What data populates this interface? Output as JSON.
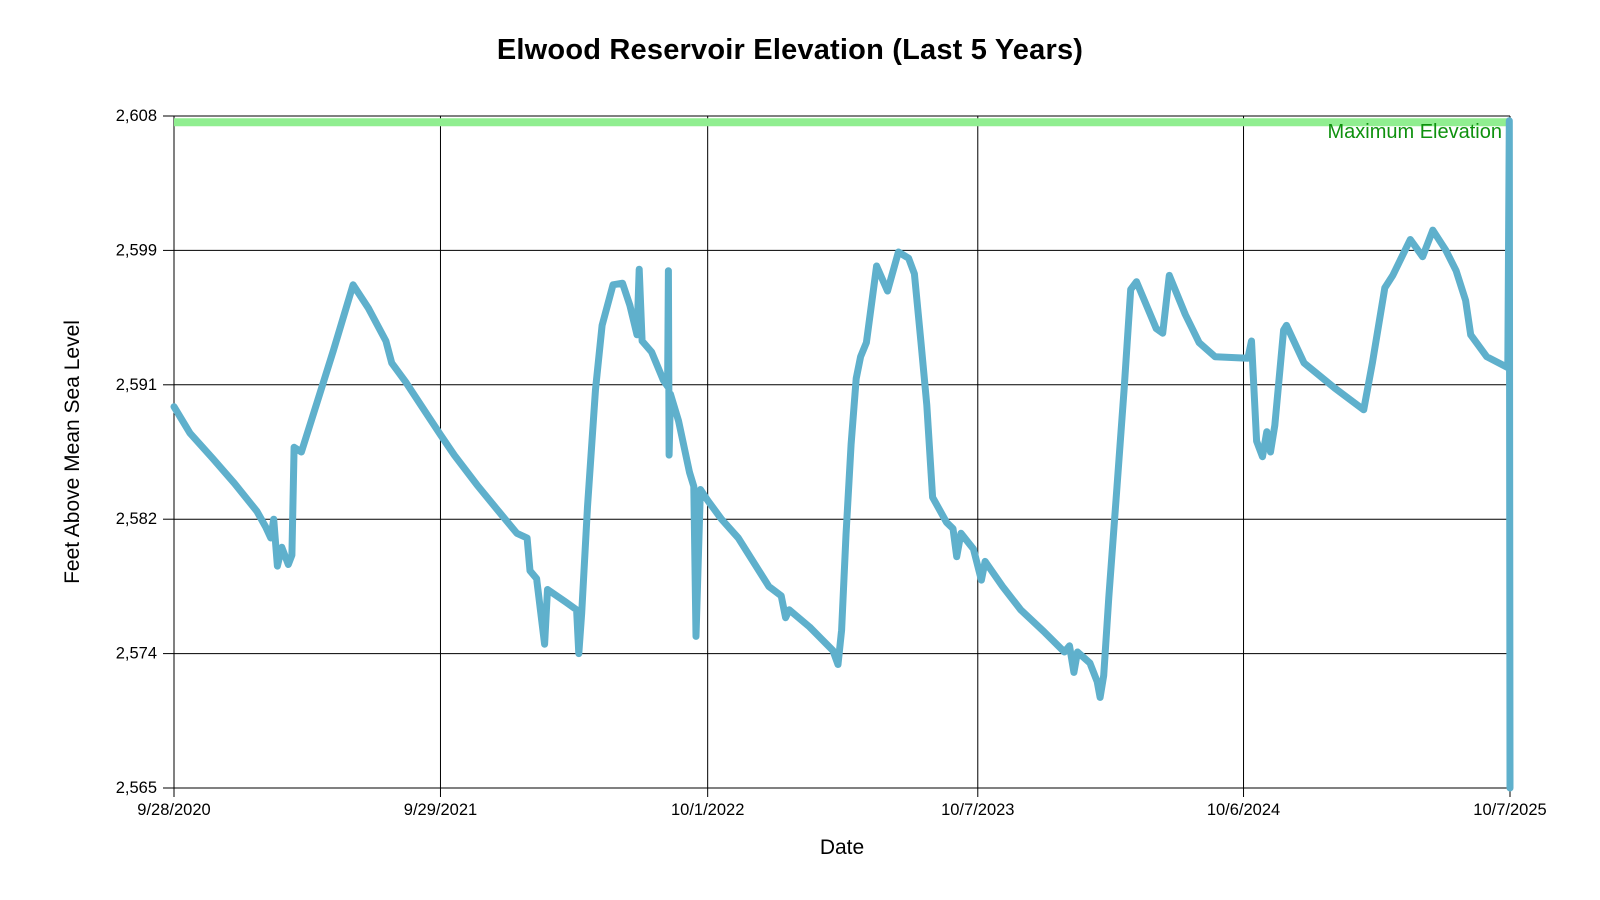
{
  "chart_data": {
    "type": "line",
    "title": "Elwood Reservoir Elevation (Last 5 Years)",
    "xlabel": "Date",
    "ylabel": "Feet Above Mean Sea Level",
    "x_range": [
      "2020-09-28",
      "2025-10-07"
    ],
    "ylim": [
      2565,
      2608
    ],
    "grid": true,
    "legend_position": "none",
    "background": "#FFFFFF",
    "grid_color": "#000000",
    "y_ticks": [
      {
        "value": 2565.0,
        "label": "2,565"
      },
      {
        "value": 2573.6,
        "label": "2,574"
      },
      {
        "value": 2582.2,
        "label": "2,582"
      },
      {
        "value": 2590.8,
        "label": "2,591"
      },
      {
        "value": 2599.4,
        "label": "2,599"
      },
      {
        "value": 2608.0,
        "label": "2,608"
      }
    ],
    "x_ticks": [
      {
        "date": "2020-09-28",
        "label": "9/28/2020"
      },
      {
        "date": "2021-09-29",
        "label": "9/29/2021"
      },
      {
        "date": "2022-10-01",
        "label": "10/1/2022"
      },
      {
        "date": "2023-10-07",
        "label": "10/7/2023"
      },
      {
        "date": "2024-10-06",
        "label": "10/6/2024"
      },
      {
        "date": "2025-10-07",
        "label": "10/7/2025"
      }
    ],
    "max_line": {
      "label": "Maximum Elevation",
      "value": 2607.6,
      "band_color": "#90EE90",
      "label_color": "#0E910E",
      "band_thickness_px": 8
    },
    "series": [
      {
        "name": "Reservoir Elevation",
        "color": "#5FB0CC",
        "width": 7,
        "points": [
          [
            "2020-09-28",
            2589.4
          ],
          [
            "2020-10-20",
            2587.7
          ],
          [
            "2020-11-20",
            2586.1
          ],
          [
            "2020-12-20",
            2584.5
          ],
          [
            "2021-01-20",
            2582.7
          ],
          [
            "2021-02-01",
            2581.7
          ],
          [
            "2021-02-08",
            2581.0
          ],
          [
            "2021-02-12",
            2582.2
          ],
          [
            "2021-02-17",
            2579.2
          ],
          [
            "2021-02-23",
            2580.4
          ],
          [
            "2021-03-04",
            2579.3
          ],
          [
            "2021-03-09",
            2579.9
          ],
          [
            "2021-03-12",
            2586.8
          ],
          [
            "2021-03-22",
            2586.5
          ],
          [
            "2021-04-12",
            2589.6
          ],
          [
            "2021-05-05",
            2593.0
          ],
          [
            "2021-06-01",
            2597.2
          ],
          [
            "2021-06-22",
            2595.7
          ],
          [
            "2021-07-16",
            2593.6
          ],
          [
            "2021-07-24",
            2592.2
          ],
          [
            "2021-08-12",
            2591.0
          ],
          [
            "2021-09-12",
            2588.8
          ],
          [
            "2021-09-29",
            2587.6
          ],
          [
            "2021-10-18",
            2586.3
          ],
          [
            "2021-11-18",
            2584.4
          ],
          [
            "2021-12-18",
            2582.7
          ],
          [
            "2022-01-12",
            2581.3
          ],
          [
            "2022-01-26",
            2581.0
          ],
          [
            "2022-01-30",
            2578.9
          ],
          [
            "2022-02-08",
            2578.4
          ],
          [
            "2022-02-19",
            2574.2
          ],
          [
            "2022-02-23",
            2577.7
          ],
          [
            "2022-03-20",
            2576.9
          ],
          [
            "2022-04-04",
            2576.4
          ],
          [
            "2022-04-07",
            2573.6
          ],
          [
            "2022-04-11",
            2576.2
          ],
          [
            "2022-04-19",
            2583.0
          ],
          [
            "2022-04-30",
            2590.5
          ],
          [
            "2022-05-09",
            2594.6
          ],
          [
            "2022-05-24",
            2597.2
          ],
          [
            "2022-06-06",
            2597.3
          ],
          [
            "2022-06-16",
            2595.9
          ],
          [
            "2022-06-26",
            2594.0
          ],
          [
            "2022-06-29",
            2598.2
          ],
          [
            "2022-07-03",
            2593.6
          ],
          [
            "2022-07-16",
            2592.9
          ],
          [
            "2022-08-01",
            2591.1
          ],
          [
            "2022-08-07",
            2590.7
          ],
          [
            "2022-08-08",
            2598.1
          ],
          [
            "2022-08-09",
            2586.3
          ],
          [
            "2022-08-11",
            2590.2
          ],
          [
            "2022-08-22",
            2588.5
          ],
          [
            "2022-09-06",
            2585.2
          ],
          [
            "2022-09-12",
            2584.3
          ],
          [
            "2022-09-15",
            2574.7
          ],
          [
            "2022-09-21",
            2584.1
          ],
          [
            "2022-10-01",
            2583.4
          ],
          [
            "2022-10-20",
            2582.2
          ],
          [
            "2022-11-12",
            2581.0
          ],
          [
            "2022-12-24",
            2577.9
          ],
          [
            "2023-01-10",
            2577.3
          ],
          [
            "2023-01-16",
            2575.9
          ],
          [
            "2023-01-21",
            2576.4
          ],
          [
            "2023-02-18",
            2575.3
          ],
          [
            "2023-03-22",
            2573.8
          ],
          [
            "2023-03-29",
            2572.9
          ],
          [
            "2023-04-03",
            2575.1
          ],
          [
            "2023-04-09",
            2581.2
          ],
          [
            "2023-04-16",
            2587.0
          ],
          [
            "2023-04-23",
            2591.2
          ],
          [
            "2023-04-29",
            2592.6
          ],
          [
            "2023-05-07",
            2593.5
          ],
          [
            "2023-05-21",
            2598.4
          ],
          [
            "2023-06-05",
            2596.8
          ],
          [
            "2023-06-20",
            2599.3
          ],
          [
            "2023-07-04",
            2598.9
          ],
          [
            "2023-07-12",
            2597.9
          ],
          [
            "2023-07-21",
            2593.5
          ],
          [
            "2023-07-29",
            2589.5
          ],
          [
            "2023-08-06",
            2583.6
          ],
          [
            "2023-08-25",
            2582.0
          ],
          [
            "2023-09-03",
            2581.6
          ],
          [
            "2023-09-08",
            2579.8
          ],
          [
            "2023-09-14",
            2581.3
          ],
          [
            "2023-10-01",
            2580.3
          ],
          [
            "2023-10-12",
            2578.3
          ],
          [
            "2023-10-17",
            2579.5
          ],
          [
            "2023-11-10",
            2577.9
          ],
          [
            "2023-12-05",
            2576.4
          ],
          [
            "2024-01-06",
            2575.0
          ],
          [
            "2024-02-03",
            2573.7
          ],
          [
            "2024-02-10",
            2574.1
          ],
          [
            "2024-02-16",
            2572.4
          ],
          [
            "2024-02-21",
            2573.7
          ],
          [
            "2024-03-09",
            2573.0
          ],
          [
            "2024-03-19",
            2571.8
          ],
          [
            "2024-03-23",
            2570.8
          ],
          [
            "2024-03-28",
            2572.2
          ],
          [
            "2024-04-04",
            2577.2
          ],
          [
            "2024-04-14",
            2583.5
          ],
          [
            "2024-04-25",
            2590.5
          ],
          [
            "2024-05-04",
            2596.9
          ],
          [
            "2024-05-12",
            2597.4
          ],
          [
            "2024-06-08",
            2594.4
          ],
          [
            "2024-06-17",
            2594.1
          ],
          [
            "2024-06-26",
            2597.8
          ],
          [
            "2024-07-18",
            2595.3
          ],
          [
            "2024-08-06",
            2593.5
          ],
          [
            "2024-08-28",
            2592.6
          ],
          [
            "2024-10-12",
            2592.5
          ],
          [
            "2024-10-17",
            2593.6
          ],
          [
            "2024-10-24",
            2587.2
          ],
          [
            "2024-11-01",
            2586.2
          ],
          [
            "2024-11-07",
            2587.8
          ],
          [
            "2024-11-12",
            2586.5
          ],
          [
            "2024-11-18",
            2588.2
          ],
          [
            "2024-11-30",
            2594.3
          ],
          [
            "2024-12-04",
            2594.6
          ],
          [
            "2024-12-28",
            2592.2
          ],
          [
            "2025-02-08",
            2590.6
          ],
          [
            "2025-03-20",
            2589.2
          ],
          [
            "2025-04-01",
            2592.2
          ],
          [
            "2025-04-18",
            2597.0
          ],
          [
            "2025-04-29",
            2597.8
          ],
          [
            "2025-05-23",
            2600.1
          ],
          [
            "2025-06-09",
            2599.0
          ],
          [
            "2025-06-23",
            2600.7
          ],
          [
            "2025-07-11",
            2599.4
          ],
          [
            "2025-07-25",
            2598.1
          ],
          [
            "2025-08-07",
            2596.2
          ],
          [
            "2025-08-14",
            2594.0
          ],
          [
            "2025-09-05",
            2592.6
          ],
          [
            "2025-10-04",
            2591.9
          ],
          [
            "2025-10-06",
            2607.7
          ],
          [
            "2025-10-07",
            2565.0
          ]
        ]
      }
    ]
  }
}
